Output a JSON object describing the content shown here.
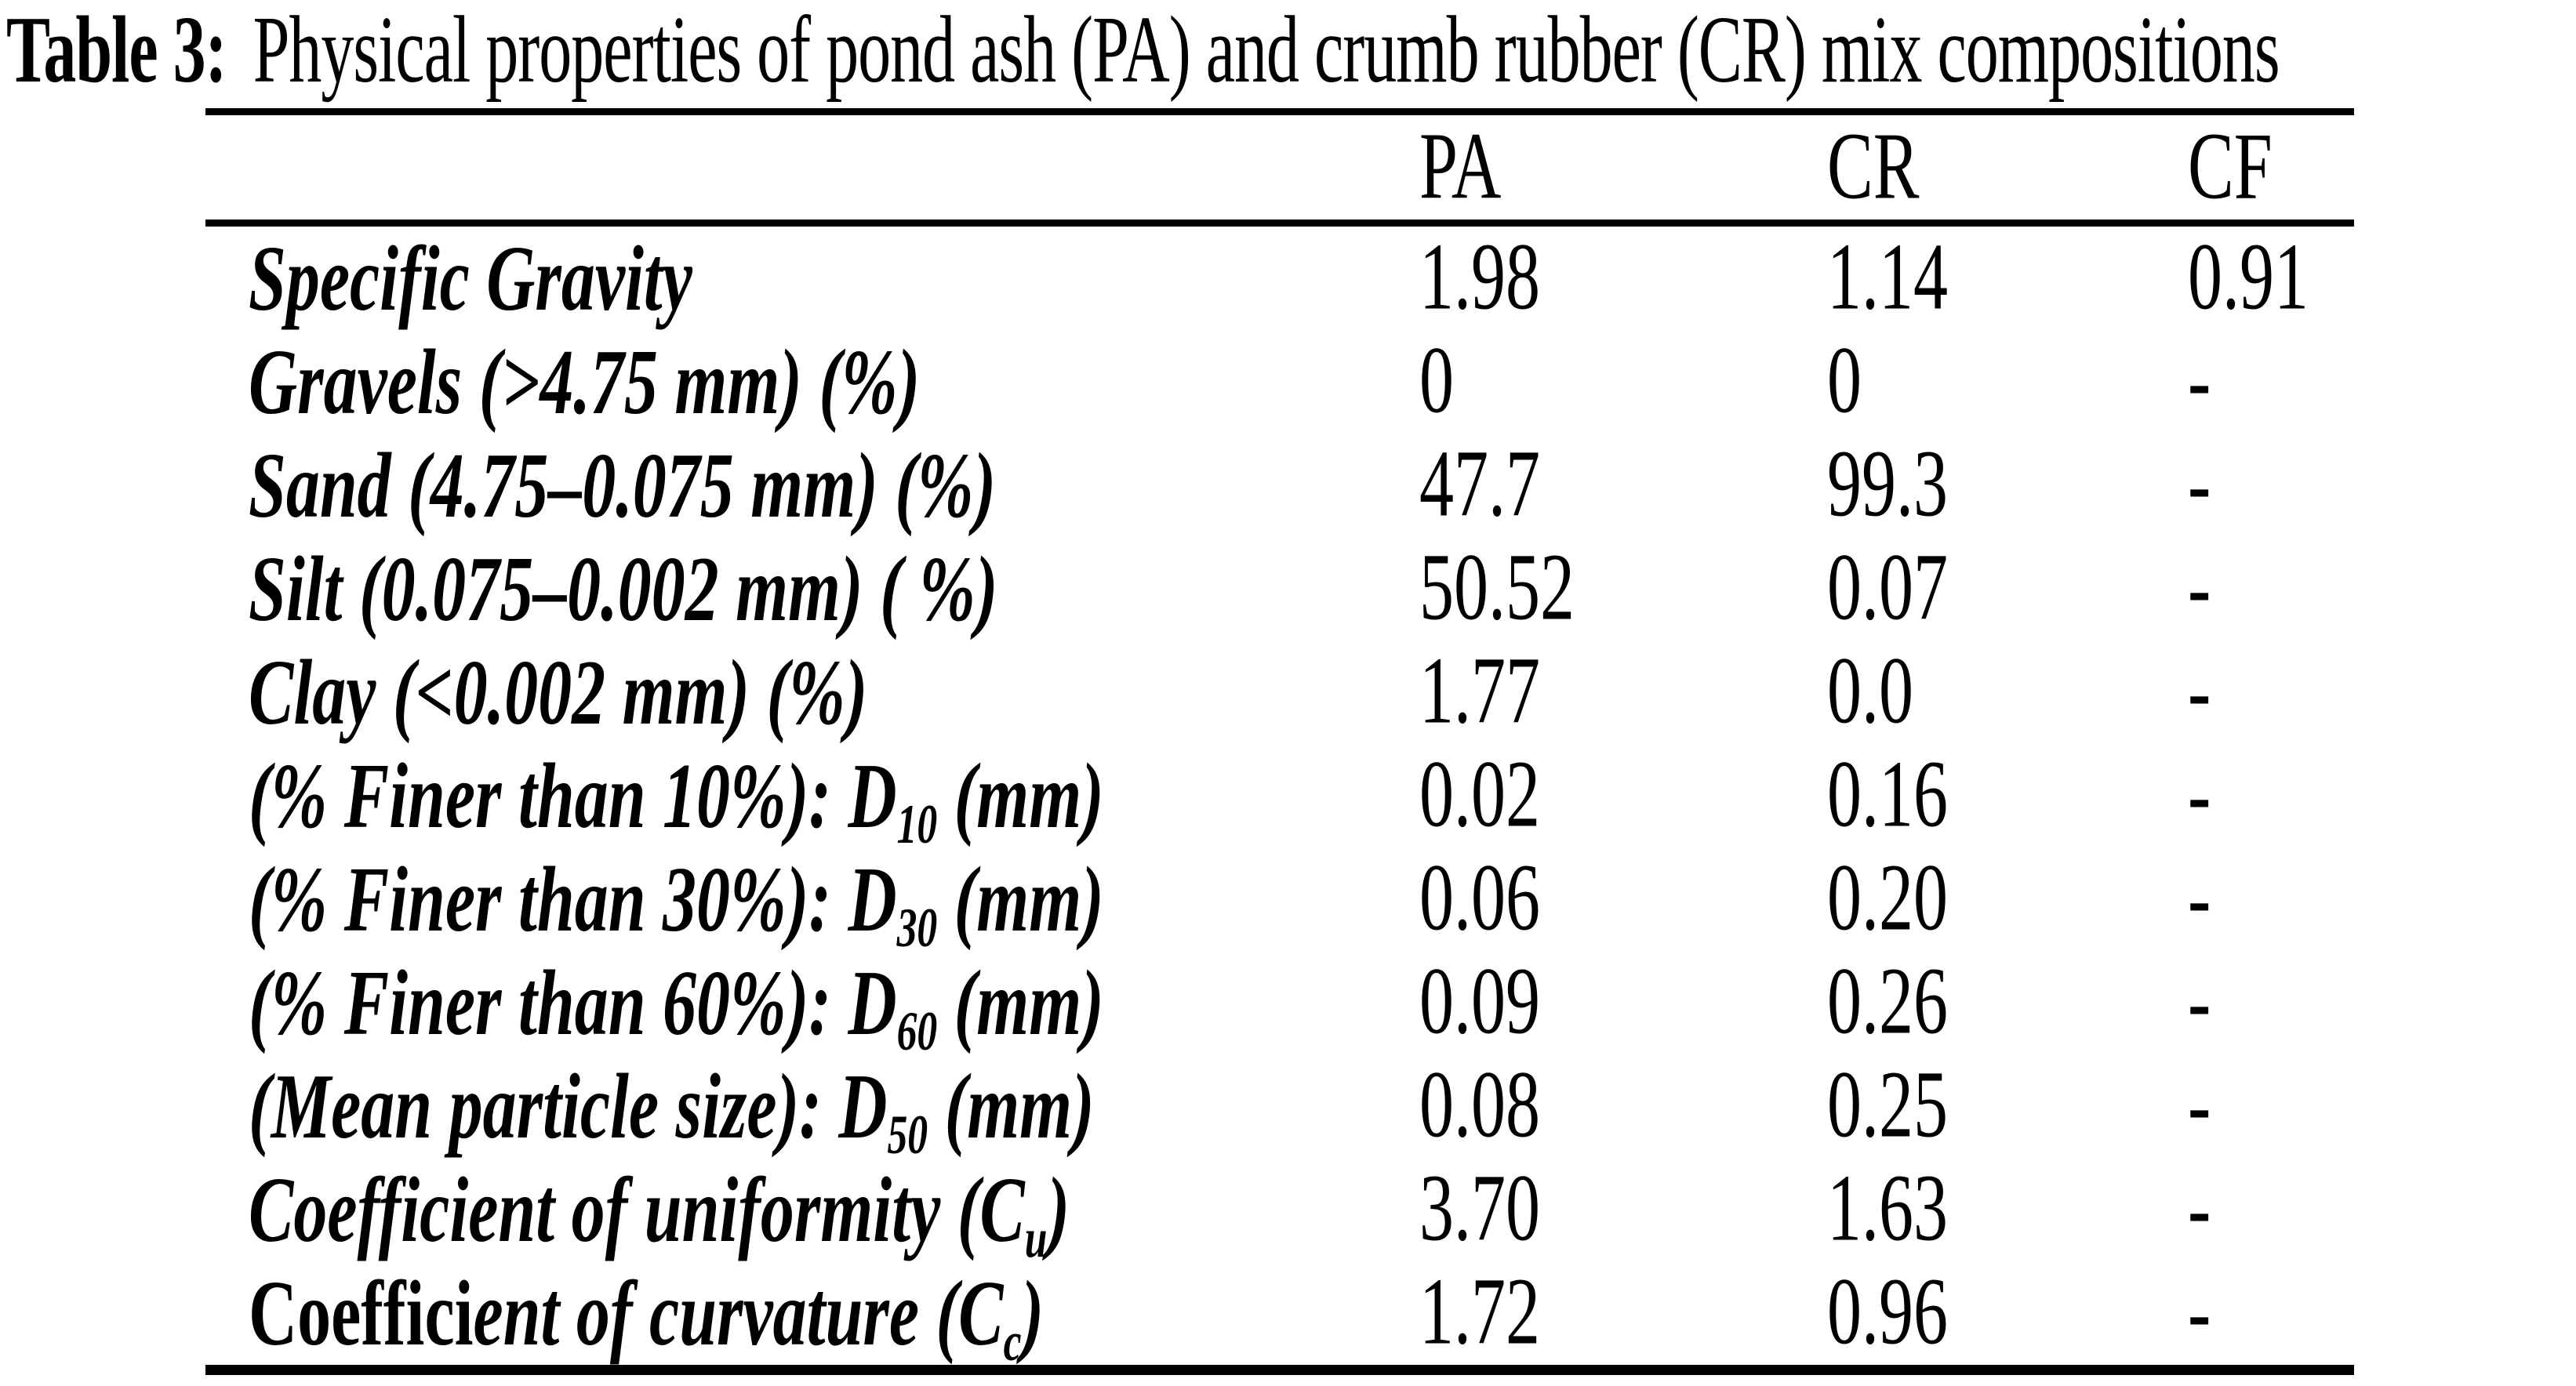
{
  "title": {
    "label": "Table 3:",
    "text": "Physical properties of pond ash (PA) and crumb rubber (CR) mix compositions"
  },
  "table": {
    "columns": [
      "PA",
      "CR",
      "CF"
    ],
    "rows": [
      {
        "label": {
          "prefix": "",
          "main": "Specific Gravity",
          "sub": "",
          "suffix": ""
        },
        "pa": "1.98",
        "cr": "1.14",
        "cf": "0.91"
      },
      {
        "label": {
          "prefix": "",
          "main": "Gravels (>4.75 mm) (%)",
          "sub": "",
          "suffix": ""
        },
        "pa": "0",
        "cr": "0",
        "cf": "-"
      },
      {
        "label": {
          "prefix": "",
          "main": "Sand (4.75–0.075 mm) (%)",
          "sub": "",
          "suffix": ""
        },
        "pa": "47.7",
        "cr": "99.3",
        "cf": "-"
      },
      {
        "label": {
          "prefix": "",
          "main": "Silt (0.075–0.002 mm) ( %)",
          "sub": "",
          "suffix": ""
        },
        "pa": "50.52",
        "cr": "0.07",
        "cf": "-"
      },
      {
        "label": {
          "prefix": "",
          "main": "Clay (<0.002 mm) (%)",
          "sub": "",
          "suffix": ""
        },
        "pa": "1.77",
        "cr": "0.0",
        "cf": "-"
      },
      {
        "label": {
          "prefix": "",
          "main": "(% Finer than 10%): D",
          "sub": "10",
          "suffix": " (mm)"
        },
        "pa": "0.02",
        "cr": "0.16",
        "cf": "-"
      },
      {
        "label": {
          "prefix": "",
          "main": "(% Finer than 30%): D",
          "sub": "30",
          "suffix": " (mm)"
        },
        "pa": "0.06",
        "cr": "0.20",
        "cf": "-"
      },
      {
        "label": {
          "prefix": "",
          "main": "(% Finer than 60%): D",
          "sub": "60",
          "suffix": " (mm)"
        },
        "pa": "0.09",
        "cr": "0.26",
        "cf": "-"
      },
      {
        "label": {
          "prefix": "",
          "main": "(Mean particle size): D",
          "sub": "50",
          "suffix": " (mm)"
        },
        "pa": "0.08",
        "cr": "0.25",
        "cf": "-"
      },
      {
        "label": {
          "prefix": "",
          "main": "Coefficient of uniformity (C",
          "sub": "u",
          "suffix": ")"
        },
        "pa": "3.70",
        "cr": "1.63",
        "cf": "-"
      },
      {
        "label": {
          "prefix": "Coeffici",
          "main": "ent of curvature (C",
          "sub": "c",
          "suffix": ")"
        },
        "pa": "1.72",
        "cr": "0.96",
        "cf": "-"
      }
    ]
  }
}
